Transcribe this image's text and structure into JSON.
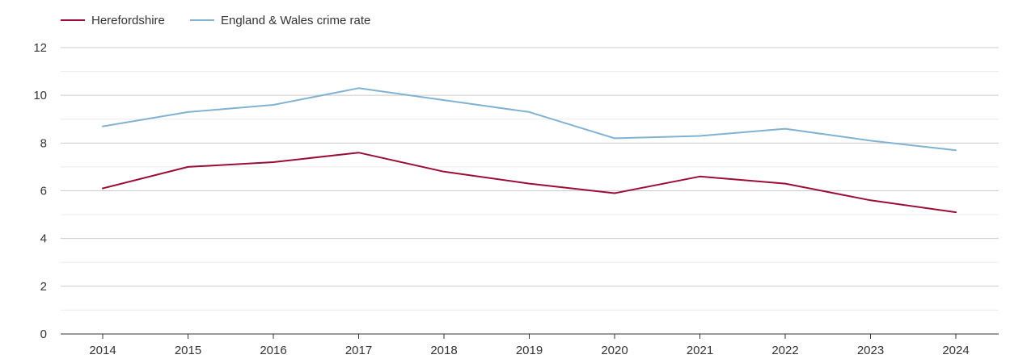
{
  "chart_data": {
    "type": "line",
    "title": "",
    "xlabel": "",
    "ylabel": "",
    "x": [
      "2014",
      "2015",
      "2016",
      "2017",
      "2018",
      "2019",
      "2020",
      "2021",
      "2022",
      "2023",
      "2024"
    ],
    "ylim": [
      0,
      12
    ],
    "yticks": [
      "0",
      "2",
      "4",
      "6",
      "8",
      "10",
      "12"
    ],
    "grid": true,
    "legend_position": "top-left",
    "series": [
      {
        "name": "Herefordshire",
        "color": "#9b0d34",
        "values": [
          6.1,
          7.0,
          7.2,
          7.6,
          6.8,
          6.3,
          5.9,
          6.6,
          6.3,
          5.6,
          5.1
        ]
      },
      {
        "name": "England & Wales crime rate",
        "color": "#7fb2d4",
        "values": [
          8.7,
          9.3,
          9.6,
          10.3,
          9.8,
          9.3,
          8.2,
          8.3,
          8.6,
          8.1,
          7.7
        ]
      }
    ]
  }
}
